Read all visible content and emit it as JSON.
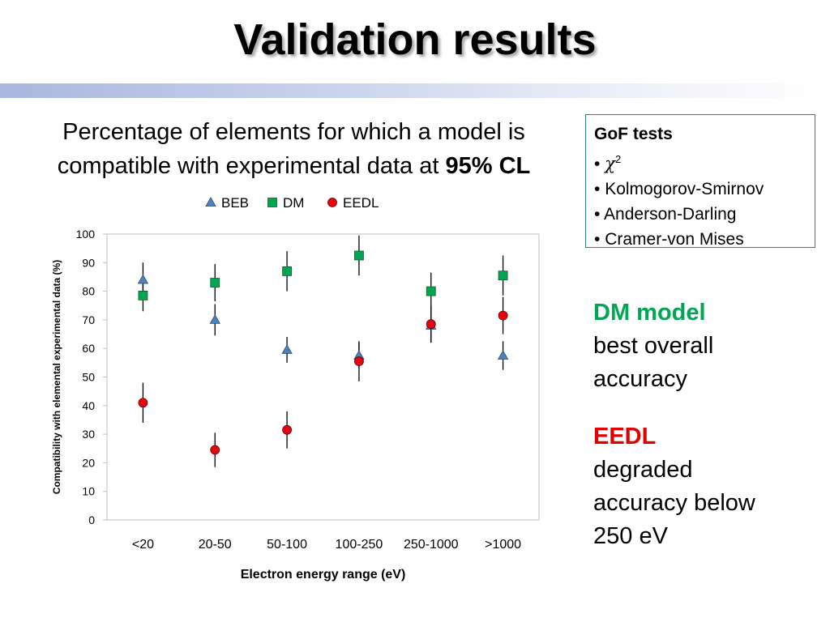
{
  "slide": {
    "title": "Validation results",
    "subtitle_line1": "Percentage of elements for  which a model is",
    "subtitle_line2_prefix": "compatible with experimental data at ",
    "subtitle_line2_bold": "95% CL",
    "gof_box": {
      "title": "GoF tests",
      "bullet": "•",
      "chi_symbol": "χ",
      "chi_sup": "2",
      "items": [
        "Kolmogorov-Smirnov",
        "Anderson-Darling",
        "Cramer-von Mises"
      ]
    },
    "dm_note": {
      "head": "DM model",
      "line1": "best overall",
      "line2": "accuracy"
    },
    "eedl_note": {
      "head": "EEDL",
      "line1": "degraded",
      "line2": "accuracy below",
      "line3": "250 eV"
    }
  },
  "colors": {
    "BEB": "#4f81bd",
    "DM": "#00a651",
    "EEDL": "#e30613",
    "dm_note": "#00a651",
    "eedl_note": "#e00000",
    "title_bar": "#a9b7de",
    "gof_border": "#2e7fa8"
  },
  "chart_data": {
    "type": "scatter",
    "categories": [
      "<20",
      "20-50",
      "50-100",
      "100-250",
      "250-1000",
      ">1000"
    ],
    "series": [
      {
        "name": "BEB",
        "marker": "triangle",
        "values": [
          84,
          70,
          59.5,
          57.5,
          68,
          57.5
        ],
        "errors": [
          6,
          5.5,
          4.5,
          4.5,
          6,
          5
        ]
      },
      {
        "name": "DM",
        "marker": "square",
        "values": [
          78.5,
          83,
          87,
          92.5,
          80,
          85.5
        ],
        "errors": [
          5.5,
          6.5,
          7,
          7,
          6.5,
          7
        ]
      },
      {
        "name": "EEDL",
        "marker": "circle",
        "values": [
          41,
          24.5,
          31.5,
          55.5,
          68.5,
          71.5
        ],
        "errors": [
          7,
          6,
          6.5,
          7,
          6.5,
          6.5
        ]
      }
    ],
    "xlabel": "Electron energy range (eV)",
    "ylabel": "Compatibility with elemental experimental data (%)",
    "ylim": [
      0,
      100
    ],
    "yticks": [
      0,
      10,
      20,
      30,
      40,
      50,
      60,
      70,
      80,
      90,
      100
    ],
    "grid": false,
    "legend": "top"
  }
}
